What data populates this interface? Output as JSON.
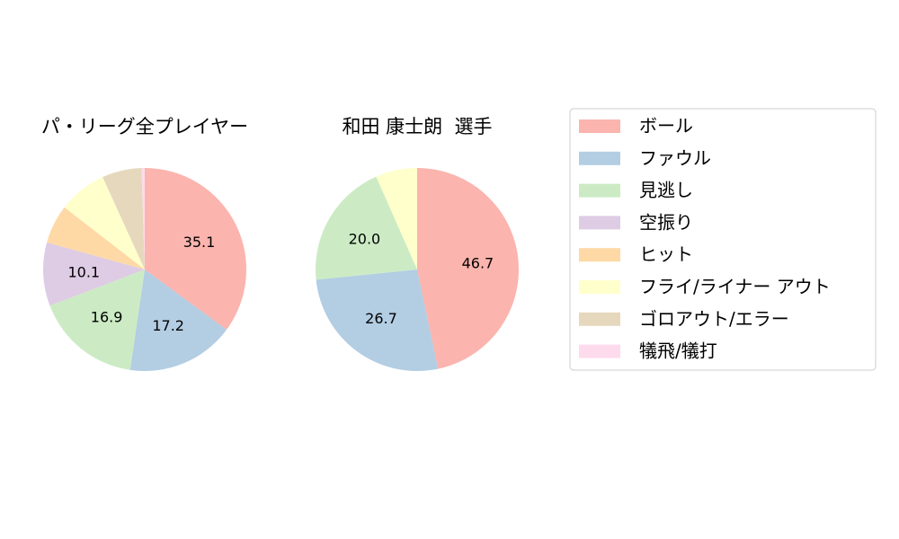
{
  "legend": {
    "placement": "right",
    "items": [
      {
        "label": "ボール",
        "color": "#fbb4ae"
      },
      {
        "label": "ファウル",
        "color": "#b3cde3"
      },
      {
        "label": "見逃し",
        "color": "#ccebc5"
      },
      {
        "label": "空振り",
        "color": "#decbe4"
      },
      {
        "label": "ヒット",
        "color": "#fed9a6"
      },
      {
        "label": "フライ/ライナー アウト",
        "color": "#ffffcc"
      },
      {
        "label": "ゴロアウト/エラー",
        "color": "#e5d8bd"
      },
      {
        "label": "犠飛/犠打",
        "color": "#fddaec"
      }
    ]
  },
  "chart_data": [
    {
      "type": "pie",
      "title": "パ・リーグ全プレイヤー",
      "categories": [
        "ボール",
        "ファウル",
        "見逃し",
        "空振り",
        "ヒット",
        "フライ/ライナー アウト",
        "ゴロアウト/エラー",
        "犠飛/犠打"
      ],
      "values": [
        35.1,
        17.2,
        16.9,
        10.1,
        6.2,
        7.7,
        6.3,
        0.5
      ],
      "labels": [
        "35.1",
        "17.2",
        "16.9",
        "10.1",
        "",
        "",
        "",
        ""
      ],
      "start_angle_deg": 90,
      "direction": "clockwise"
    },
    {
      "type": "pie",
      "title": "和田 康士朗  選手",
      "categories": [
        "ボール",
        "ファウル",
        "見逃し",
        "空振り",
        "ヒット",
        "フライ/ライナー アウト",
        "ゴロアウト/エラー",
        "犠飛/犠打"
      ],
      "values": [
        46.7,
        26.7,
        20.0,
        0,
        0,
        6.6,
        0,
        0
      ],
      "labels": [
        "46.7",
        "26.7",
        "20.0",
        "",
        "",
        "",
        "",
        ""
      ],
      "start_angle_deg": 90,
      "direction": "clockwise"
    }
  ]
}
